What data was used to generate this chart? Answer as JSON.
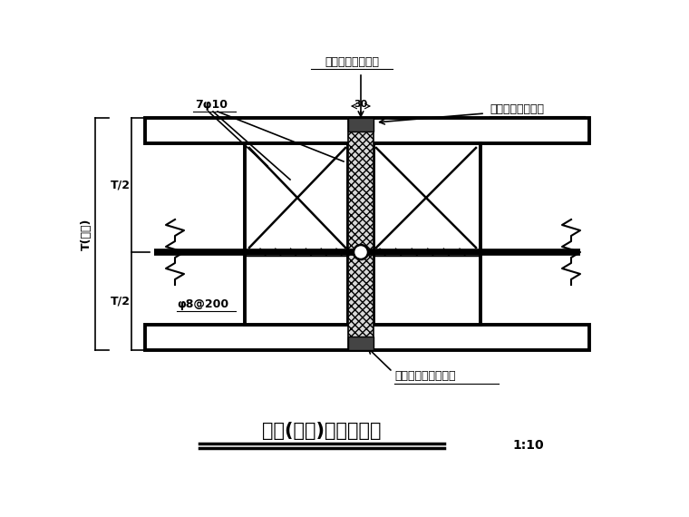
{
  "title": "底板(顶板)变形缝详图",
  "scale": "1:10",
  "bg_color": "#ffffff",
  "labels": {
    "top_annotation": "聚乙烯发泡填缝板",
    "right_annotation": "双组份聚硫密封胶",
    "bottom_annotation": "底板时该处无密封胶",
    "left_dim1": "T/2",
    "left_dim2": "T/2",
    "left_total": "T(板厕)",
    "rebar_label": "7φ10",
    "width_label": "30",
    "bottom_rebar": "φ8@200"
  }
}
